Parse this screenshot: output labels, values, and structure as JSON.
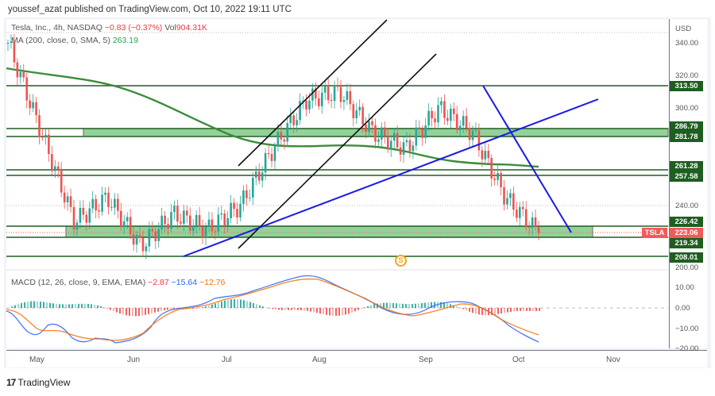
{
  "publisher_line": "youssef_azat published on TradingView.com, Oct 10, 2022 19:11 UTC",
  "legend": {
    "symbol_desc": "Tesla, Inc., 4h, NASDAQ",
    "change": "−0.83 (−0.37%)",
    "vol_label": "Vol",
    "vol_value": "904.31K",
    "ma_label": "MA (200, close, 0, SMA, 5)",
    "ma_value": "263.19",
    "macd_label": "MACD (12, 26, close, 9, EMA, EMA)",
    "macd_hist": "−2.87",
    "macd_line": "−15.64",
    "macd_signal": "−12.76"
  },
  "price_scale": {
    "currency": "USD",
    "ticks": [
      "340.00",
      "320.00",
      "300.00",
      "240.00",
      "200.00"
    ],
    "level_tags": [
      "313.50",
      "286.79",
      "281.78",
      "261.28",
      "257.58",
      "226.42",
      "219.34",
      "208.01"
    ],
    "last_price": "223.06",
    "symbol": "TSLA"
  },
  "macd_scale": {
    "ticks": [
      "10.00",
      "0.00",
      "−10.00",
      "−20.00"
    ]
  },
  "time_axis": {
    "months": [
      "May",
      "Jun",
      "Jul",
      "Aug",
      "Sep",
      "Oct",
      "Nov"
    ]
  },
  "marker": {
    "label": "S"
  },
  "brand": {
    "logo": "17",
    "name": "TradingView"
  },
  "colors": {
    "up": "#26a69a",
    "down": "#ef5350",
    "level": "#1e5e20",
    "zone": "#94d19a",
    "ma": "#3b8d3a",
    "trend": "#1a1ae6",
    "channel": "#111111",
    "macd": "#2962ff",
    "signal": "#ff6d00"
  },
  "chart_data": {
    "type": "candlestick",
    "title": "Tesla, Inc., 4h, NASDAQ",
    "x_range": [
      "May 2022",
      "Nov 2022"
    ],
    "ylim": [
      200,
      345
    ],
    "last_price": 223.06,
    "horizontal_levels": [
      313.5,
      286.79,
      281.78,
      261.28,
      257.58,
      226.42,
      219.34,
      208.01
    ],
    "zones": [
      {
        "from": 281.78,
        "to": 286.79,
        "x_start": "mid-May",
        "x_end": "late Sep"
      },
      {
        "from": 219.34,
        "to": 226.42,
        "x_start": "early May",
        "x_end": "late Oct"
      }
    ],
    "moving_average": {
      "name": "MA 200 SMA",
      "value": 263.19
    },
    "approx_closes": [
      {
        "x": "early May",
        "y": 340
      },
      {
        "x": "mid May",
        "y": 285
      },
      {
        "x": "late May",
        "y": 230
      },
      {
        "x": "early Jun",
        "y": 245
      },
      {
        "x": "mid Jun",
        "y": 215
      },
      {
        "x": "late Jun",
        "y": 235
      },
      {
        "x": "early Jul",
        "y": 225
      },
      {
        "x": "mid Jul",
        "y": 240
      },
      {
        "x": "late Jul",
        "y": 275
      },
      {
        "x": "early Aug",
        "y": 305
      },
      {
        "x": "mid Aug",
        "y": 310
      },
      {
        "x": "late Aug",
        "y": 285
      },
      {
        "x": "early Sep",
        "y": 275
      },
      {
        "x": "mid Sep",
        "y": 300
      },
      {
        "x": "late Sep",
        "y": 285
      },
      {
        "x": "early Oct",
        "y": 245
      },
      {
        "x": "Oct 10",
        "y": 223.06
      }
    ],
    "macd": {
      "hist": -2.87,
      "macd": -15.64,
      "signal": -12.76,
      "ylim": [
        -20,
        15
      ]
    }
  }
}
